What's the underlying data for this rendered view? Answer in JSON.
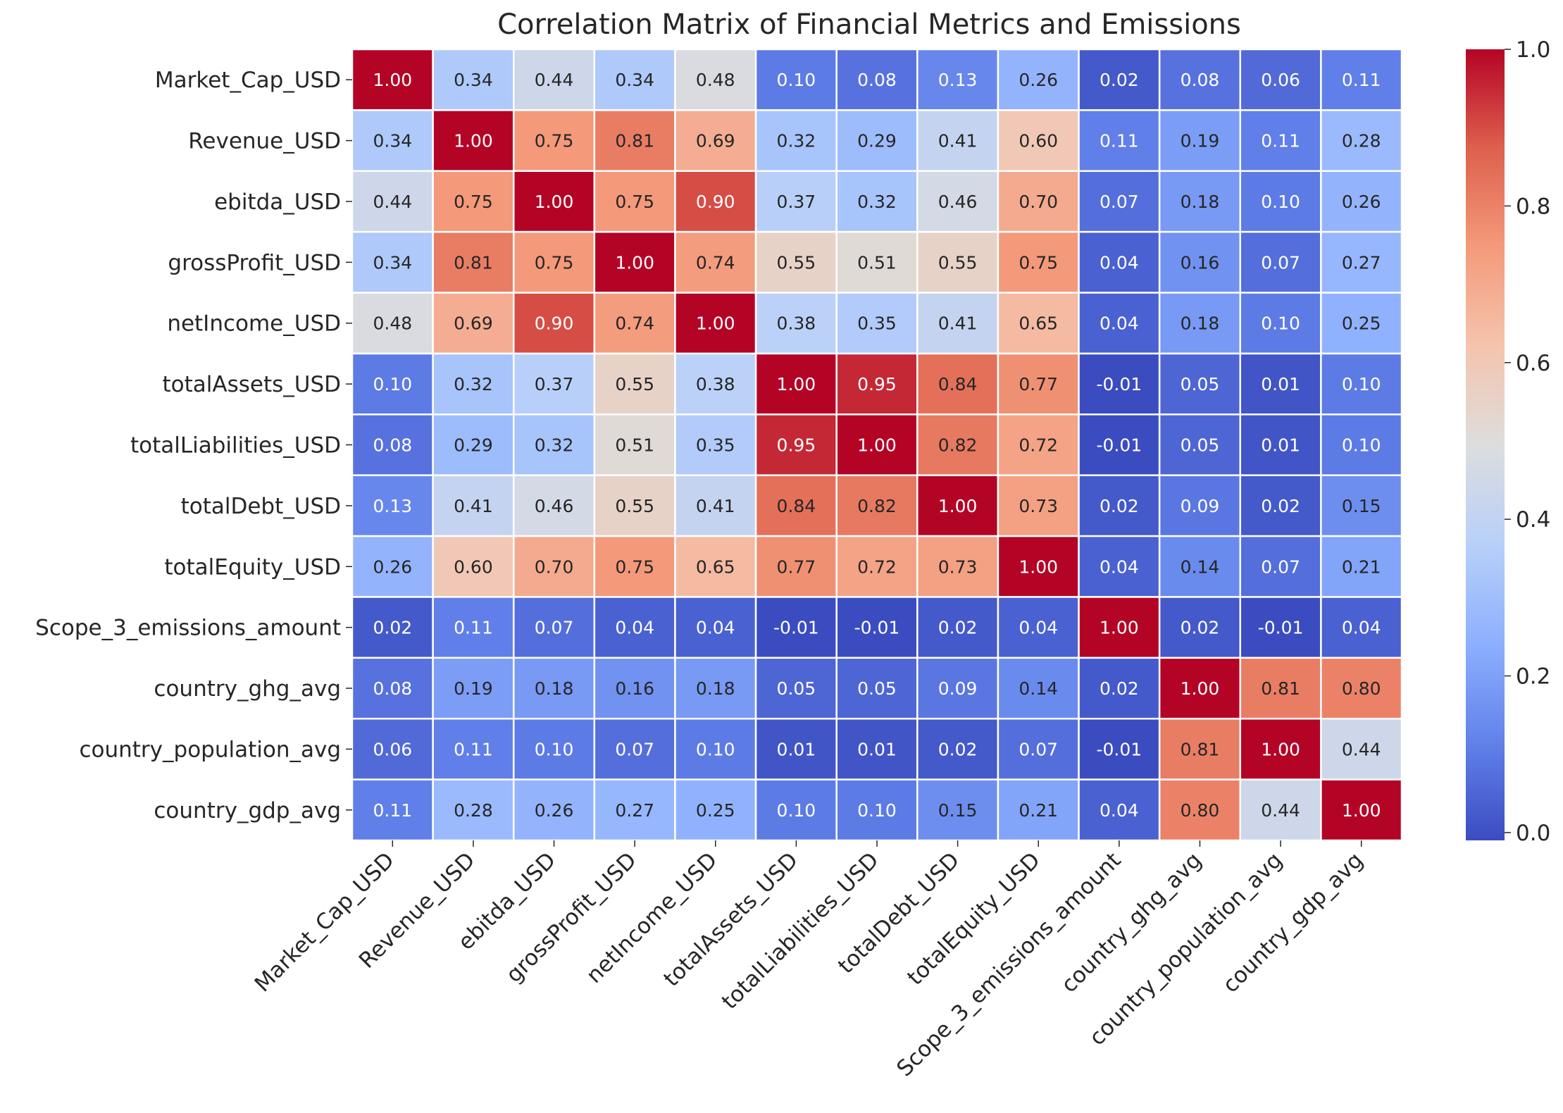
{
  "chart_data": {
    "type": "heatmap",
    "title": "Correlation Matrix of Financial Metrics and Emissions",
    "xlabel": "",
    "ylabel": "",
    "rows": [
      "Market_Cap_USD",
      "Revenue_USD",
      "ebitda_USD",
      "grossProfit_USD",
      "netIncome_USD",
      "totalAssets_USD",
      "totalLiabilities_USD",
      "totalDebt_USD",
      "totalEquity_USD",
      "Scope_3_emissions_amount",
      "country_ghg_avg",
      "country_population_avg",
      "country_gdp_avg"
    ],
    "columns": [
      "Market_Cap_USD",
      "Revenue_USD",
      "ebitda_USD",
      "grossProfit_USD",
      "netIncome_USD",
      "totalAssets_USD",
      "totalLiabilities_USD",
      "totalDebt_USD",
      "totalEquity_USD",
      "Scope_3_emissions_amount",
      "country_ghg_avg",
      "country_population_avg",
      "country_gdp_avg"
    ],
    "values": [
      [
        1.0,
        0.34,
        0.44,
        0.34,
        0.48,
        0.1,
        0.08,
        0.13,
        0.26,
        0.02,
        0.08,
        0.06,
        0.11
      ],
      [
        0.34,
        1.0,
        0.75,
        0.81,
        0.69,
        0.32,
        0.29,
        0.41,
        0.6,
        0.11,
        0.19,
        0.11,
        0.28
      ],
      [
        0.44,
        0.75,
        1.0,
        0.75,
        0.9,
        0.37,
        0.32,
        0.46,
        0.7,
        0.07,
        0.18,
        0.1,
        0.26
      ],
      [
        0.34,
        0.81,
        0.75,
        1.0,
        0.74,
        0.55,
        0.51,
        0.55,
        0.75,
        0.04,
        0.16,
        0.07,
        0.27
      ],
      [
        0.48,
        0.69,
        0.9,
        0.74,
        1.0,
        0.38,
        0.35,
        0.41,
        0.65,
        0.04,
        0.18,
        0.1,
        0.25
      ],
      [
        0.1,
        0.32,
        0.37,
        0.55,
        0.38,
        1.0,
        0.95,
        0.84,
        0.77,
        -0.01,
        0.05,
        0.01,
        0.1
      ],
      [
        0.08,
        0.29,
        0.32,
        0.51,
        0.35,
        0.95,
        1.0,
        0.82,
        0.72,
        -0.01,
        0.05,
        0.01,
        0.1
      ],
      [
        0.13,
        0.41,
        0.46,
        0.55,
        0.41,
        0.84,
        0.82,
        1.0,
        0.73,
        0.02,
        0.09,
        0.02,
        0.15
      ],
      [
        0.26,
        0.6,
        0.7,
        0.75,
        0.65,
        0.77,
        0.72,
        0.73,
        1.0,
        0.04,
        0.14,
        0.07,
        0.21
      ],
      [
        0.02,
        0.11,
        0.07,
        0.04,
        0.04,
        -0.01,
        -0.01,
        0.02,
        0.04,
        1.0,
        0.02,
        -0.01,
        0.04
      ],
      [
        0.08,
        0.19,
        0.18,
        0.16,
        0.18,
        0.05,
        0.05,
        0.09,
        0.14,
        0.02,
        1.0,
        0.81,
        0.8
      ],
      [
        0.06,
        0.11,
        0.1,
        0.07,
        0.1,
        0.01,
        0.01,
        0.02,
        0.07,
        -0.01,
        0.81,
        1.0,
        0.44
      ],
      [
        0.11,
        0.28,
        0.26,
        0.27,
        0.25,
        0.1,
        0.1,
        0.15,
        0.21,
        0.04,
        0.8,
        0.44,
        1.0
      ]
    ],
    "colormap": "coolwarm",
    "colorbar": {
      "vmin": -0.01,
      "vmax": 1.0,
      "ticks": [
        "0.0",
        "0.2",
        "0.4",
        "0.6",
        "0.8",
        "1.0"
      ]
    },
    "annotations": "two-decimal values in each cell",
    "grid": false,
    "legend": "colorbar right"
  }
}
